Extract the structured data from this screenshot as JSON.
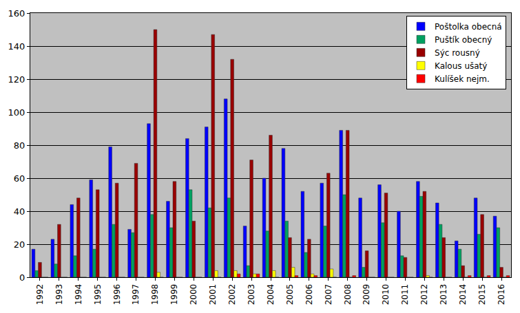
{
  "chart_data": {
    "type": "bar",
    "categories": [
      "1992",
      "1993",
      "1994",
      "1995",
      "1996",
      "1997",
      "1998",
      "1999",
      "2000",
      "2001",
      "2002",
      "2003",
      "2004",
      "2005",
      "2006",
      "2007",
      "2008",
      "2009",
      "2010",
      "2011",
      "2012",
      "2013",
      "2014",
      "2015",
      "2016"
    ],
    "series": [
      {
        "name": "Poštolka obecná",
        "color": "#0000ff",
        "values": [
          17,
          23,
          44,
          59,
          79,
          29,
          93,
          46,
          84,
          91,
          108,
          31,
          60,
          78,
          52,
          57,
          89,
          48,
          56,
          40,
          58,
          45,
          22,
          48,
          37
        ]
      },
      {
        "name": "Puštík obecný",
        "color": "#00a060",
        "values": [
          4,
          8,
          13,
          17,
          32,
          27,
          38,
          30,
          53,
          42,
          48,
          7,
          28,
          34,
          15,
          31,
          50,
          6,
          33,
          13,
          49,
          32,
          17,
          26,
          30
        ]
      },
      {
        "name": "Sýc rousný",
        "color": "#990000",
        "values": [
          9,
          32,
          48,
          53,
          57,
          69,
          150,
          58,
          34,
          147,
          132,
          71,
          86,
          24,
          23,
          63,
          89,
          16,
          51,
          12,
          52,
          24,
          7,
          38,
          6
        ]
      },
      {
        "name": "Kalous ušatý",
        "color": "#ffff00",
        "values": [
          0,
          0,
          0,
          0,
          0,
          0,
          3,
          0,
          0,
          4,
          4,
          2,
          4,
          6,
          2,
          5,
          0,
          0,
          0,
          0,
          1,
          0,
          0,
          0,
          0
        ]
      },
      {
        "name": "Kulíšek nejm.",
        "color": "#ff0000",
        "values": [
          0,
          0,
          0,
          0,
          0,
          0,
          0,
          0,
          0,
          0,
          2,
          2,
          0,
          1,
          1,
          0,
          1,
          0,
          0,
          0,
          0,
          0,
          1,
          1,
          1
        ]
      }
    ],
    "ylim": [
      0,
      160
    ],
    "yticks": [
      0,
      20,
      40,
      60,
      80,
      100,
      120,
      140,
      160
    ],
    "grid": true,
    "legend": "top right"
  }
}
